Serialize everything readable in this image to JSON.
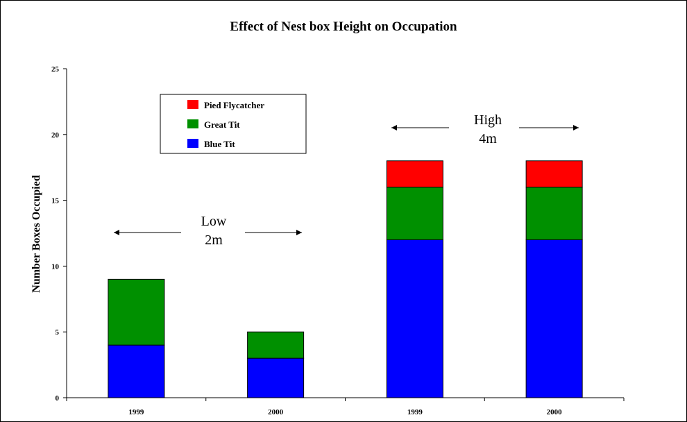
{
  "chart_data": {
    "type": "bar",
    "stacked": true,
    "title": "Effect of Nest box Height on Occupation",
    "xlabel": "",
    "ylabel": "Number Boxes Occupied",
    "categories": [
      "1999",
      "2000",
      "1999",
      "2000"
    ],
    "ylim": [
      0,
      25
    ],
    "yticks": [
      0,
      5,
      10,
      15,
      20,
      25
    ],
    "grid": false,
    "legend_position": "top-left",
    "series": [
      {
        "name": "Blue Tit",
        "color": "#0000ff",
        "values": [
          4,
          3,
          12,
          12
        ]
      },
      {
        "name": "Great Tit",
        "color": "#009000",
        "values": [
          5,
          2,
          4,
          4
        ]
      },
      {
        "name": "Pied Flycatcher",
        "color": "#ff0000",
        "values": [
          0,
          0,
          2,
          2
        ]
      }
    ],
    "legend_order": [
      "Pied Flycatcher",
      "Great Tit",
      "Blue Tit"
    ],
    "annotations": [
      {
        "line1": "Low",
        "line2": "2m",
        "spans_categories": [
          0,
          1
        ]
      },
      {
        "line1": "High",
        "line2": "4m",
        "spans_categories": [
          2,
          3
        ]
      }
    ]
  }
}
